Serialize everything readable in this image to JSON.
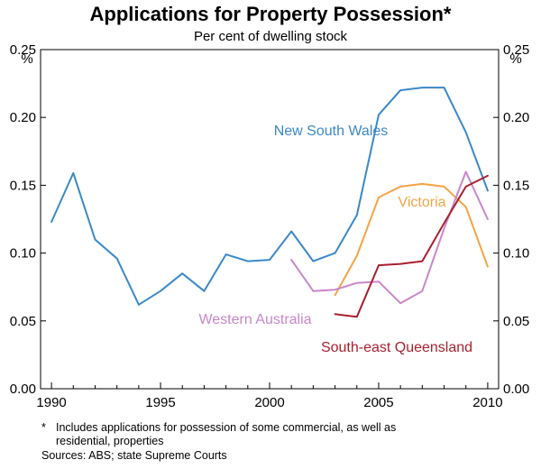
{
  "chart_data": {
    "type": "line",
    "title": "Applications for Property Possession*",
    "subtitle": "Per cent of dwelling stock",
    "y_unit_left": "%",
    "y_unit_right": "%",
    "xlim": [
      1989.5,
      2010.5
    ],
    "ylim": [
      0,
      0.25
    ],
    "x_ticks": [
      1990,
      1995,
      2000,
      2005,
      2010
    ],
    "y_ticks": [
      "0.00",
      "0.05",
      "0.10",
      "0.15",
      "0.20",
      "0.25"
    ],
    "series": [
      {
        "name": "New South Wales",
        "color": "#3b88c8",
        "x": [
          1990,
          1991,
          1992,
          1993,
          1994,
          1995,
          1996,
          1997,
          1998,
          1999,
          2000,
          2001,
          2002,
          2003,
          2004,
          2005,
          2006,
          2007,
          2008,
          2009,
          2010
        ],
        "y": [
          0.123,
          0.159,
          0.11,
          0.096,
          0.062,
          0.072,
          0.085,
          0.072,
          0.099,
          0.094,
          0.095,
          0.116,
          0.094,
          0.1,
          0.128,
          0.202,
          0.22,
          0.222,
          0.222,
          0.189,
          0.146
        ]
      },
      {
        "name": "Victoria",
        "color": "#f4a443",
        "x": [
          2003,
          2004,
          2005,
          2006,
          2007,
          2008,
          2009,
          2010
        ],
        "y": [
          0.069,
          0.098,
          0.141,
          0.149,
          0.151,
          0.149,
          0.134,
          0.09
        ]
      },
      {
        "name": "Western Australia",
        "color": "#c887c9",
        "x": [
          2001,
          2002,
          2003,
          2004,
          2005,
          2006,
          2007,
          2008,
          2009,
          2010
        ],
        "y": [
          0.095,
          0.072,
          0.073,
          0.078,
          0.079,
          0.063,
          0.072,
          0.118,
          0.16,
          0.125
        ]
      },
      {
        "name": "South-east Queensland",
        "color": "#a8202f",
        "x": [
          2003,
          2004,
          2005,
          2006,
          2007,
          2008,
          2009,
          2010
        ],
        "y": [
          0.055,
          0.053,
          0.091,
          0.092,
          0.094,
          0.122,
          0.149,
          0.157
        ]
      }
    ]
  },
  "footnote": {
    "star": "*",
    "line1": "Includes applications for possession of some commercial, as well as",
    "line2": "residential, properties",
    "sources": "Sources: ABS; state Supreme Courts"
  }
}
